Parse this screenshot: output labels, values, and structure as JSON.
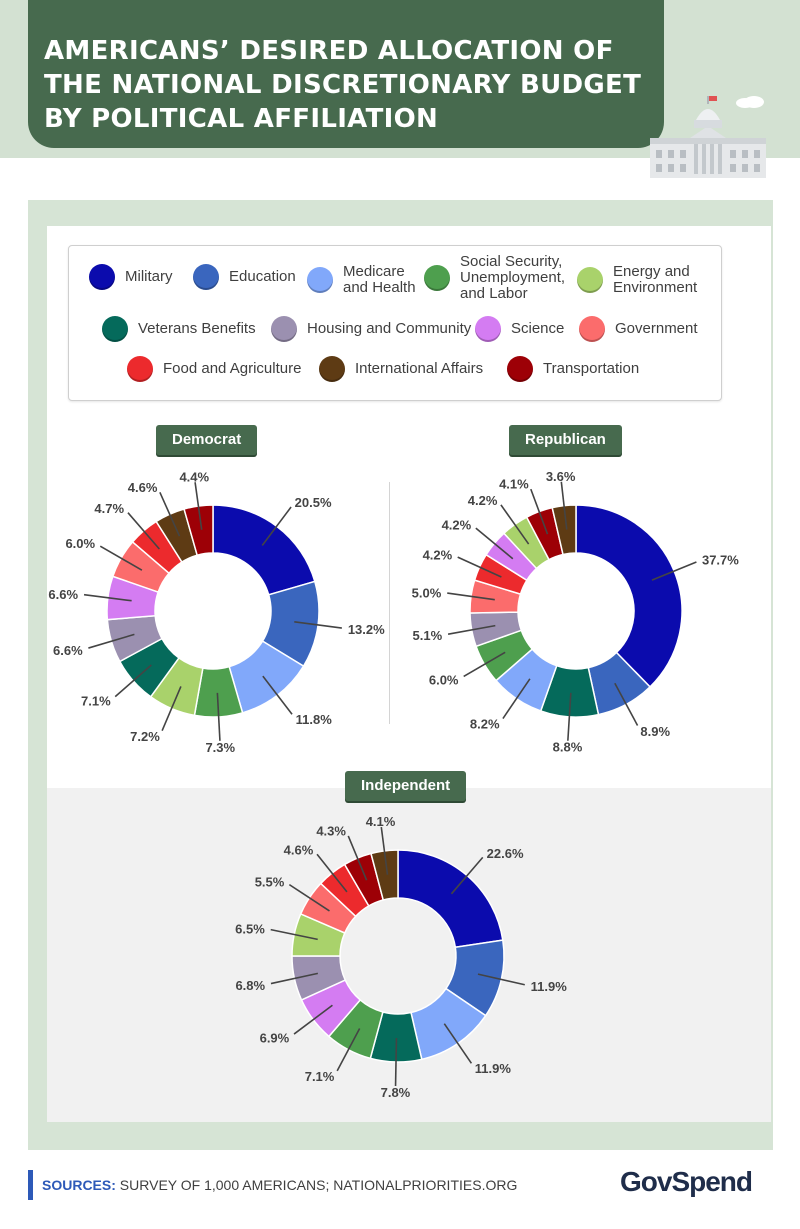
{
  "header": {
    "title_line1": "AMERICANS’ DESIRED ALLOCATION OF",
    "title_line2": "THE NATIONAL DISCRETIONARY BUDGET",
    "title_line3": "BY POLITICAL AFFILIATION"
  },
  "legend": {
    "items": [
      {
        "label": "Military",
        "color": "#0b0bad"
      },
      {
        "label": "Education",
        "color": "#3a66be"
      },
      {
        "label": "Medicare\nand Health",
        "color": "#81a8fa"
      },
      {
        "label": "Social Security,\nUnemployment,\nand Labor",
        "color": "#4e9f4e"
      },
      {
        "label": "Energy and\nEnvironment",
        "color": "#a9d26b"
      },
      {
        "label": "Veterans Benefits",
        "color": "#056a5b"
      },
      {
        "label": "Housing and Community",
        "color": "#9b90b0"
      },
      {
        "label": "Science",
        "color": "#d47cf2"
      },
      {
        "label": "Government",
        "color": "#fb6c6c"
      },
      {
        "label": "Food and Agriculture",
        "color": "#ec2a2d"
      },
      {
        "label": "International Affairs",
        "color": "#5e3b14"
      },
      {
        "label": "Transportation",
        "color": "#9d0006"
      }
    ]
  },
  "chart_data": [
    {
      "type": "pie",
      "title": "Democrat",
      "categories": [
        "Military",
        "Education",
        "Medicare and Health",
        "Social Security, Unemployment, and Labor",
        "Energy and Environment",
        "Veterans Benefits",
        "Housing and Community",
        "Science",
        "Government",
        "Food and Agriculture",
        "International Affairs",
        "Transportation"
      ],
      "values": [
        20.5,
        13.2,
        11.8,
        7.3,
        7.2,
        7.1,
        6.6,
        6.6,
        6.0,
        4.7,
        4.6,
        4.4
      ],
      "labels": [
        "20.5%",
        "13.2%",
        "11.8%",
        "7.3%",
        "7.2%",
        "7.1%",
        "6.6%",
        "6.6%",
        "6.0%",
        "4.7%",
        "4.6%",
        "4.4%"
      ]
    },
    {
      "type": "pie",
      "title": "Republican",
      "categories": [
        "Military",
        "Education",
        "Veterans Benefits",
        "Medicare and Health",
        "Social Security, Unemployment, and Labor",
        "Housing and Community",
        "Government",
        "Food and Agriculture",
        "Science",
        "Energy and Environment",
        "Transportation",
        "International Affairs"
      ],
      "values": [
        37.7,
        8.9,
        8.8,
        8.2,
        6.0,
        5.1,
        5.0,
        4.2,
        4.2,
        4.2,
        4.1,
        3.6
      ],
      "labels": [
        "37.7%",
        "8.9%",
        "8.8%",
        "8.2%",
        "6.0%",
        "5.1%",
        "5.0%",
        "4.2%",
        "4.2%",
        "4.2%",
        "4.1%",
        "3.6%"
      ]
    },
    {
      "type": "pie",
      "title": "Independent",
      "categories": [
        "Military",
        "Education",
        "Medicare and Health",
        "Veterans Benefits",
        "Social Security, Unemployment, and Labor",
        "Science",
        "Housing and Community",
        "Energy and Environment",
        "Government",
        "Food and Agriculture",
        "Transportation",
        "International Affairs"
      ],
      "values": [
        22.6,
        11.9,
        11.9,
        7.8,
        7.1,
        6.9,
        6.8,
        6.5,
        5.5,
        4.6,
        4.3,
        4.1
      ],
      "labels": [
        "22.6%",
        "11.9%",
        "11.9%",
        "7.8%",
        "7.1%",
        "6.9%",
        "6.8%",
        "6.5%",
        "5.5%",
        "4.6%",
        "4.3%",
        "4.1%"
      ]
    }
  ],
  "footer": {
    "sources_label": "SOURCES:",
    "sources_text": "SURVEY OF 1,000 AMERICANS; NATIONALPRIORITIES.ORG",
    "logo_text": "GovSpend"
  }
}
